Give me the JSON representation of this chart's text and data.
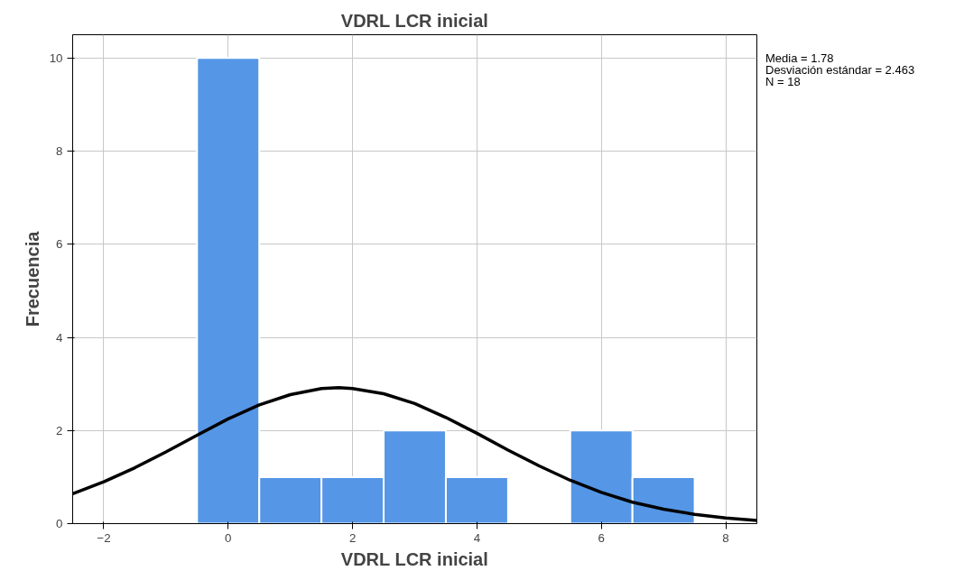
{
  "chart_data": {
    "type": "histogram",
    "title": "VDRL LCR inicial",
    "xlabel": "VDRL LCR inicial",
    "ylabel": "Frecuencia",
    "bins": [
      -0.5,
      0.5,
      1.5,
      2.5,
      3.5,
      4.5,
      5.5,
      6.5,
      7.5
    ],
    "values": [
      10,
      1,
      1,
      2,
      1,
      0,
      2,
      1
    ],
    "color": "#5596e6",
    "series": [
      {
        "type": "line",
        "color": "#000000",
        "x": [
          -2.5,
          -2,
          -1.5,
          -1,
          -0.5,
          0,
          0.5,
          1,
          1.5,
          1.78,
          2,
          2.5,
          3,
          3.5,
          4,
          4.5,
          5,
          5.5,
          6,
          6.5,
          7,
          7.5,
          8,
          8.5
        ],
        "values": [
          0.64,
          0.9,
          1.2,
          1.54,
          1.9,
          2.25,
          2.55,
          2.77,
          2.9,
          2.92,
          2.9,
          2.79,
          2.58,
          2.28,
          1.94,
          1.58,
          1.24,
          0.93,
          0.67,
          0.46,
          0.31,
          0.2,
          0.12,
          0.07
        ]
      }
    ],
    "xlim": [
      -2.5,
      8.5
    ],
    "ylim": [
      0,
      10.5
    ],
    "xticks": [
      -2,
      0,
      2,
      4,
      6,
      8
    ],
    "yticks": [
      0,
      2,
      4,
      6,
      8,
      10
    ],
    "grid": true,
    "annotations": [
      "Media = 1.78",
      "Desviación estándar = 2.463",
      "N = 18"
    ]
  }
}
